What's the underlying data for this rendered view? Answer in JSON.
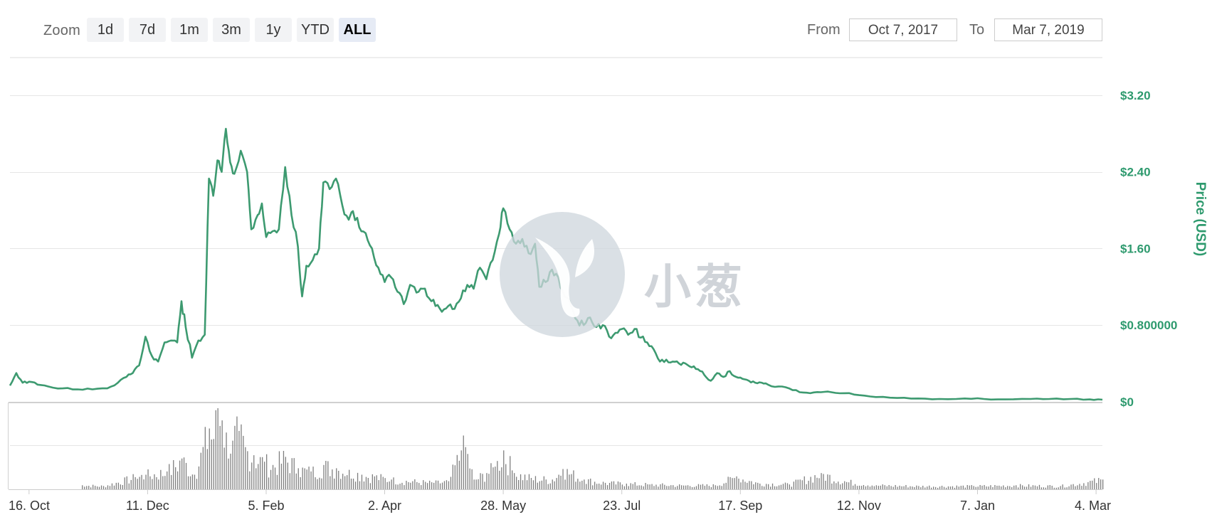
{
  "toolbar": {
    "zoom_label": "Zoom",
    "zoom_buttons": [
      {
        "label": "1d",
        "active": false
      },
      {
        "label": "7d",
        "active": false
      },
      {
        "label": "1m",
        "active": false
      },
      {
        "label": "3m",
        "active": false
      },
      {
        "label": "1y",
        "active": false
      },
      {
        "label": "YTD",
        "active": false
      },
      {
        "label": "ALL",
        "active": true
      }
    ],
    "from_label": "From",
    "from_value": "Oct 7, 2017",
    "to_label": "To",
    "to_value": "Mar 7, 2019"
  },
  "watermark": {
    "text": "小葱"
  },
  "colors": {
    "line": "#3d9a70",
    "axis_text": "#2e9a6e",
    "volume_bar": "#7f7f7f",
    "grid": "#e6e6e6"
  },
  "chart_data": {
    "type": "line",
    "title": "",
    "ylabel": "Price (USD)",
    "ylim": [
      0,
      3.6
    ],
    "y_ticks": [
      "$0",
      "$0.800000",
      "$1.60",
      "$2.40",
      "$3.20"
    ],
    "y_tick_values": [
      0,
      0.8,
      1.6,
      2.4,
      3.2
    ],
    "x_ticks": [
      "16. Oct",
      "11. Dec",
      "5. Feb",
      "2. Apr",
      "28. May",
      "23. Jul",
      "17. Sep",
      "12. Nov",
      "7. Jan",
      "4. Mar"
    ],
    "x_tick_dates": [
      "2017-10-16",
      "2017-12-11",
      "2018-02-05",
      "2018-04-02",
      "2018-05-28",
      "2018-07-23",
      "2018-09-17",
      "2018-11-12",
      "2019-01-07",
      "2019-03-04"
    ],
    "x_range": [
      "2017-10-07",
      "2019-03-07"
    ],
    "series": [
      {
        "name": "",
        "points": [
          [
            "2017-10-07",
            0.17
          ],
          [
            "2017-10-10",
            0.3
          ],
          [
            "2017-10-13",
            0.2
          ],
          [
            "2017-10-16",
            0.21
          ],
          [
            "2017-10-20",
            0.18
          ],
          [
            "2017-10-25",
            0.16
          ],
          [
            "2017-11-01",
            0.14
          ],
          [
            "2017-11-08",
            0.13
          ],
          [
            "2017-11-15",
            0.13
          ],
          [
            "2017-11-22",
            0.14
          ],
          [
            "2017-11-27",
            0.2
          ],
          [
            "2017-12-01",
            0.26
          ],
          [
            "2017-12-04",
            0.3
          ],
          [
            "2017-12-07",
            0.38
          ],
          [
            "2017-12-10",
            0.68
          ],
          [
            "2017-12-13",
            0.48
          ],
          [
            "2017-12-16",
            0.42
          ],
          [
            "2017-12-19",
            0.62
          ],
          [
            "2017-12-22",
            0.64
          ],
          [
            "2017-12-25",
            0.62
          ],
          [
            "2017-12-27",
            1.05
          ],
          [
            "2017-12-29",
            0.78
          ],
          [
            "2018-01-01",
            0.46
          ],
          [
            "2018-01-04",
            0.64
          ],
          [
            "2018-01-07",
            0.7
          ],
          [
            "2018-01-09",
            2.33
          ],
          [
            "2018-01-11",
            2.15
          ],
          [
            "2018-01-13",
            2.52
          ],
          [
            "2018-01-15",
            2.4
          ],
          [
            "2018-01-17",
            2.85
          ],
          [
            "2018-01-19",
            2.5
          ],
          [
            "2018-01-21",
            2.38
          ],
          [
            "2018-01-24",
            2.62
          ],
          [
            "2018-01-27",
            2.4
          ],
          [
            "2018-01-29",
            1.8
          ],
          [
            "2018-02-01",
            1.95
          ],
          [
            "2018-02-03",
            2.07
          ],
          [
            "2018-02-05",
            1.72
          ],
          [
            "2018-02-08",
            1.78
          ],
          [
            "2018-02-11",
            1.8
          ],
          [
            "2018-02-14",
            2.45
          ],
          [
            "2018-02-17",
            1.95
          ],
          [
            "2018-02-20",
            1.62
          ],
          [
            "2018-02-22",
            1.1
          ],
          [
            "2018-02-24",
            1.42
          ],
          [
            "2018-02-27",
            1.48
          ],
          [
            "2018-03-02",
            1.6
          ],
          [
            "2018-03-04",
            2.29
          ],
          [
            "2018-03-07",
            2.22
          ],
          [
            "2018-03-10",
            2.33
          ],
          [
            "2018-03-13",
            2.05
          ],
          [
            "2018-03-16",
            1.9
          ],
          [
            "2018-03-18",
            1.99
          ],
          [
            "2018-03-21",
            1.82
          ],
          [
            "2018-03-24",
            1.76
          ],
          [
            "2018-03-27",
            1.6
          ],
          [
            "2018-03-30",
            1.4
          ],
          [
            "2018-04-02",
            1.25
          ],
          [
            "2018-04-05",
            1.3
          ],
          [
            "2018-04-08",
            1.15
          ],
          [
            "2018-04-11",
            1.02
          ],
          [
            "2018-04-14",
            1.22
          ],
          [
            "2018-04-17",
            1.14
          ],
          [
            "2018-04-20",
            1.18
          ],
          [
            "2018-04-23",
            1.08
          ],
          [
            "2018-04-26",
            1.0
          ],
          [
            "2018-04-29",
            0.94
          ],
          [
            "2018-05-02",
            1.0
          ],
          [
            "2018-05-05",
            0.97
          ],
          [
            "2018-05-08",
            1.08
          ],
          [
            "2018-05-11",
            1.22
          ],
          [
            "2018-05-14",
            1.18
          ],
          [
            "2018-05-17",
            1.4
          ],
          [
            "2018-05-20",
            1.28
          ],
          [
            "2018-05-23",
            1.48
          ],
          [
            "2018-05-26",
            1.75
          ],
          [
            "2018-05-28",
            2.02
          ],
          [
            "2018-05-31",
            1.8
          ],
          [
            "2018-06-03",
            1.65
          ],
          [
            "2018-06-06",
            1.7
          ],
          [
            "2018-06-09",
            1.55
          ],
          [
            "2018-06-12",
            1.65
          ],
          [
            "2018-06-14",
            1.2
          ],
          [
            "2018-06-17",
            1.25
          ],
          [
            "2018-06-20",
            1.38
          ],
          [
            "2018-06-23",
            1.3
          ],
          [
            "2018-06-26",
            1.1
          ],
          [
            "2018-06-29",
            1.0
          ],
          [
            "2018-07-02",
            0.85
          ],
          [
            "2018-07-05",
            0.8
          ],
          [
            "2018-07-08",
            0.88
          ],
          [
            "2018-07-11",
            0.78
          ],
          [
            "2018-07-14",
            0.8
          ],
          [
            "2018-07-17",
            0.68
          ],
          [
            "2018-07-20",
            0.72
          ],
          [
            "2018-07-23",
            0.76
          ],
          [
            "2018-07-26",
            0.7
          ],
          [
            "2018-07-29",
            0.76
          ],
          [
            "2018-08-01",
            0.67
          ],
          [
            "2018-08-04",
            0.62
          ],
          [
            "2018-08-07",
            0.55
          ],
          [
            "2018-08-10",
            0.42
          ],
          [
            "2018-08-13",
            0.44
          ],
          [
            "2018-08-16",
            0.42
          ],
          [
            "2018-08-19",
            0.4
          ],
          [
            "2018-08-22",
            0.4
          ],
          [
            "2018-08-25",
            0.36
          ],
          [
            "2018-08-28",
            0.34
          ],
          [
            "2018-08-31",
            0.28
          ],
          [
            "2018-09-03",
            0.22
          ],
          [
            "2018-09-06",
            0.3
          ],
          [
            "2018-09-09",
            0.26
          ],
          [
            "2018-09-12",
            0.32
          ],
          [
            "2018-09-15",
            0.26
          ],
          [
            "2018-09-18",
            0.24
          ],
          [
            "2018-09-21",
            0.22
          ],
          [
            "2018-09-24",
            0.2
          ],
          [
            "2018-09-27",
            0.2
          ],
          [
            "2018-09-30",
            0.18
          ],
          [
            "2018-10-05",
            0.16
          ],
          [
            "2018-10-10",
            0.14
          ],
          [
            "2018-10-15",
            0.1
          ],
          [
            "2018-10-20",
            0.09
          ],
          [
            "2018-10-25",
            0.1
          ],
          [
            "2018-10-30",
            0.1
          ],
          [
            "2018-11-05",
            0.09
          ],
          [
            "2018-11-12",
            0.07
          ],
          [
            "2018-11-20",
            0.05
          ],
          [
            "2018-11-30",
            0.04
          ],
          [
            "2018-12-10",
            0.035
          ],
          [
            "2018-12-20",
            0.03
          ],
          [
            "2019-01-01",
            0.035
          ],
          [
            "2019-01-10",
            0.03
          ],
          [
            "2019-01-20",
            0.025
          ],
          [
            "2019-02-01",
            0.03
          ],
          [
            "2019-02-10",
            0.03
          ],
          [
            "2019-02-20",
            0.03
          ],
          [
            "2019-03-01",
            0.025
          ],
          [
            "2019-03-07",
            0.022
          ]
        ]
      }
    ],
    "volume": {
      "ylabel": "",
      "points": [
        [
          "2017-11-10",
          0.05
        ],
        [
          "2017-11-20",
          0.04
        ],
        [
          "2017-12-05",
          0.15
        ],
        [
          "2017-12-10",
          0.18
        ],
        [
          "2017-12-20",
          0.22
        ],
        [
          "2017-12-27",
          0.38
        ],
        [
          "2018-01-02",
          0.18
        ],
        [
          "2018-01-09",
          0.75
        ],
        [
          "2018-01-11",
          0.62
        ],
        [
          "2018-01-13",
          1.0
        ],
        [
          "2018-01-15",
          0.85
        ],
        [
          "2018-01-17",
          0.7
        ],
        [
          "2018-01-20",
          0.6
        ],
        [
          "2018-01-23",
          0.72
        ],
        [
          "2018-01-26",
          0.52
        ],
        [
          "2018-01-30",
          0.42
        ],
        [
          "2018-02-04",
          0.34
        ],
        [
          "2018-02-08",
          0.3
        ],
        [
          "2018-02-14",
          0.4
        ],
        [
          "2018-02-20",
          0.26
        ],
        [
          "2018-02-26",
          0.22
        ],
        [
          "2018-03-04",
          0.3
        ],
        [
          "2018-03-10",
          0.26
        ],
        [
          "2018-03-16",
          0.24
        ],
        [
          "2018-03-22",
          0.18
        ],
        [
          "2018-03-28",
          0.16
        ],
        [
          "2018-04-05",
          0.12
        ],
        [
          "2018-04-15",
          0.1
        ],
        [
          "2018-04-25",
          0.08
        ],
        [
          "2018-05-02",
          0.1
        ],
        [
          "2018-05-08",
          0.48
        ],
        [
          "2018-05-10",
          0.52
        ],
        [
          "2018-05-14",
          0.12
        ],
        [
          "2018-05-20",
          0.2
        ],
        [
          "2018-05-24",
          0.28
        ],
        [
          "2018-05-28",
          0.48
        ],
        [
          "2018-06-02",
          0.2
        ],
        [
          "2018-06-10",
          0.14
        ],
        [
          "2018-06-20",
          0.12
        ],
        [
          "2018-06-25",
          0.25
        ],
        [
          "2018-07-05",
          0.12
        ],
        [
          "2018-07-15",
          0.08
        ],
        [
          "2018-07-25",
          0.07
        ],
        [
          "2018-08-05",
          0.06
        ],
        [
          "2018-08-20",
          0.05
        ],
        [
          "2018-09-05",
          0.05
        ],
        [
          "2018-09-15",
          0.16
        ],
        [
          "2018-09-25",
          0.08
        ],
        [
          "2018-10-10",
          0.06
        ],
        [
          "2018-10-25",
          0.2
        ],
        [
          "2018-11-05",
          0.1
        ],
        [
          "2018-11-20",
          0.05
        ],
        [
          "2018-12-10",
          0.04
        ],
        [
          "2019-01-05",
          0.04
        ],
        [
          "2019-01-25",
          0.05
        ],
        [
          "2019-02-15",
          0.04
        ],
        [
          "2019-03-07",
          0.12
        ]
      ]
    }
  }
}
